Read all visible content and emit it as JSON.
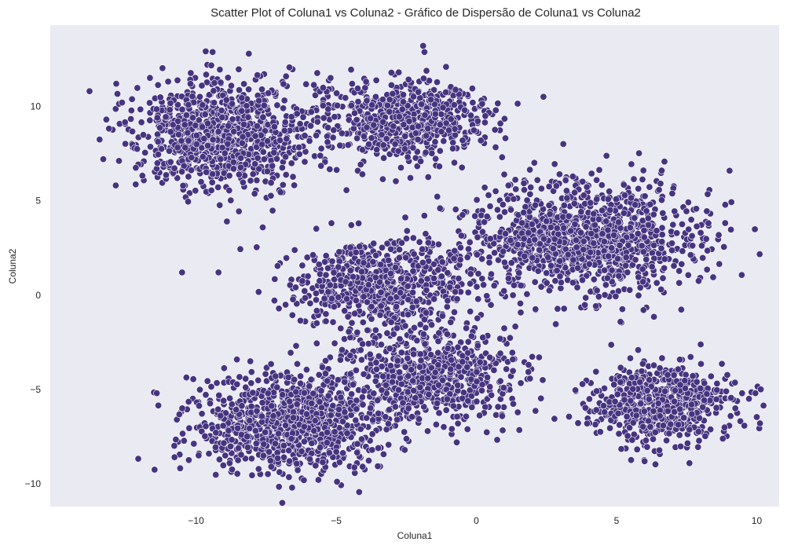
{
  "chart_data": {
    "type": "scatter",
    "title": "Scatter Plot of Coluna1 vs Coluna2 - Gráfico de Dispersão de Coluna1 vs Coluna2",
    "xlabel": "Coluna1",
    "ylabel": "Coluna2",
    "xlim": [
      -15.2,
      10.8
    ],
    "ylim": [
      -11.2,
      14.3
    ],
    "xticks": [
      -10,
      -5,
      0,
      5,
      10
    ],
    "xtick_labels": [
      "−10",
      "−5",
      "0",
      "5",
      "10"
    ],
    "yticks": [
      -10,
      -5,
      0,
      5,
      10
    ],
    "ytick_labels": [
      "−10",
      "−5",
      "0",
      "5",
      "10"
    ],
    "grid": false,
    "legend": "none",
    "colors": {
      "plot_background": "#EAEAF2",
      "marker": "#463480",
      "marker_edge": "#FFFFFF"
    },
    "clusters": [
      {
        "center": [
          -9.1,
          8.5
        ],
        "spread": [
          1.6,
          1.5
        ],
        "count": 950
      },
      {
        "center": [
          -2.5,
          9.3
        ],
        "spread": [
          1.5,
          1.1
        ],
        "count": 600
      },
      {
        "center": [
          3.8,
          3.0
        ],
        "spread": [
          2.0,
          1.5
        ],
        "count": 1200
      },
      {
        "center": [
          -3.4,
          0.5
        ],
        "spread": [
          1.6,
          1.2
        ],
        "count": 650
      },
      {
        "center": [
          -1.5,
          -4.2
        ],
        "spread": [
          1.6,
          1.2
        ],
        "count": 600
      },
      {
        "center": [
          -6.6,
          -6.8
        ],
        "spread": [
          1.7,
          1.3
        ],
        "count": 950
      },
      {
        "center": [
          6.5,
          -5.8
        ],
        "spread": [
          1.3,
          1.0
        ],
        "count": 650
      }
    ],
    "outliers": [
      [
        -13.8,
        10.8
      ],
      [
        -13.2,
        9.3
      ],
      [
        -10.5,
        1.2
      ],
      [
        -9.2,
        1.2
      ],
      [
        -1.9,
        13.2
      ],
      [
        -5.2,
        11.5
      ],
      [
        3.1,
        8.0
      ],
      [
        8.0,
        3.3
      ],
      [
        6.0,
        -8.8
      ],
      [
        7.6,
        -8.9
      ],
      [
        -3.5,
        -8.1
      ],
      [
        -0.7,
        -7.8
      ],
      [
        -8.9,
        3.9
      ],
      [
        -4.2,
        3.8
      ],
      [
        1.3,
        -3.4
      ]
    ]
  }
}
